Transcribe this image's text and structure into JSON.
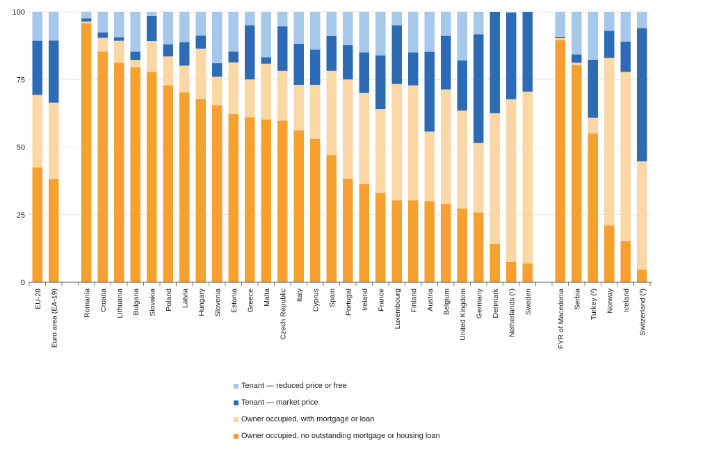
{
  "chart_data": {
    "type": "bar",
    "stacked": true,
    "title": "",
    "xlabel": "",
    "ylabel": "",
    "ylim": [
      0,
      100
    ],
    "yticks": [
      "0",
      "25",
      "50",
      "75",
      "100"
    ],
    "grid": true,
    "legend_position": "bottom",
    "groups": [
      [
        "EU-28",
        "Euro area (EA-19)"
      ],
      [
        "Romania",
        "Croatia",
        "Lithuania",
        "Bulgaria",
        "Slovakia",
        "Poland",
        "Latvia",
        "Hungary",
        "Slovenia",
        "Estonia",
        "Greece",
        "Malta",
        "Czech Republic",
        "Italy",
        "Cyprus",
        "Spain",
        "Portugal",
        "Ireland",
        "France",
        "Luxembourg",
        "Finland",
        "Austria",
        "Belgium",
        "United Kingdom",
        "Germany",
        "Denmark",
        "Netherlands (¹)",
        "Sweden"
      ],
      [
        "FYR of Macedonia",
        "Serbia",
        "Turkey (²)",
        "Norway",
        "Iceland",
        "Switzerland (³)"
      ]
    ],
    "categories": [
      "EU-28",
      "Euro area (EA-19)",
      "Romania",
      "Croatia",
      "Lithuania",
      "Bulgaria",
      "Slovakia",
      "Poland",
      "Latvia",
      "Hungary",
      "Slovenia",
      "Estonia",
      "Greece",
      "Malta",
      "Czech Republic",
      "Italy",
      "Cyprus",
      "Spain",
      "Portugal",
      "Ireland",
      "France",
      "Luxembourg",
      "Finland",
      "Austria",
      "Belgium",
      "United Kingdom",
      "Germany",
      "Denmark",
      "Netherlands (¹)",
      "Sweden",
      "FYR of Macedonia",
      "Serbia",
      "Turkey (²)",
      "Norway",
      "Iceland",
      "Switzerland (³)"
    ],
    "series": [
      {
        "name": "Owner occupied, no outstanding mortgage or housing loan",
        "color": "#f5a02f",
        "values": [
          42.5,
          38.2,
          95.8,
          85.3,
          81.2,
          79.5,
          77.8,
          72.8,
          70.2,
          67.8,
          65.5,
          62.2,
          61.0,
          60.2,
          59.8,
          56.2,
          53.0,
          47.0,
          38.3,
          36.3,
          33.0,
          30.3,
          30.3,
          30.0,
          29.0,
          27.3,
          25.8,
          14.2,
          7.5,
          7.0,
          89.5,
          80.3,
          55.0,
          21.0,
          15.2,
          4.7
        ]
      },
      {
        "name": "Owner occupied, with mortgage or loan",
        "color": "#fbd7a5",
        "values": [
          26.8,
          28.2,
          0.6,
          5.1,
          8.1,
          2.7,
          11.4,
          10.7,
          9.9,
          18.6,
          10.5,
          19.1,
          14.0,
          20.6,
          18.4,
          16.8,
          20.0,
          31.2,
          36.7,
          33.7,
          31.0,
          43.0,
          42.5,
          25.7,
          42.3,
          36.2,
          25.7,
          48.3,
          60.2,
          63.5,
          0.8,
          0.9,
          5.8,
          62.0,
          62.6,
          40.0
        ]
      },
      {
        "name": "Tenant — market price",
        "color": "#2e6bb5",
        "values": [
          20.0,
          23.0,
          1.2,
          2.0,
          1.3,
          3.0,
          9.3,
          4.5,
          8.7,
          4.8,
          5.0,
          4.0,
          20.0,
          2.4,
          16.4,
          15.2,
          13.0,
          12.8,
          12.7,
          15.0,
          19.9,
          21.7,
          12.2,
          29.5,
          19.8,
          18.5,
          40.2,
          37.5,
          32.0,
          29.5,
          0.5,
          3.0,
          21.5,
          10.0,
          11.2,
          49.3
        ]
      },
      {
        "name": "Tenant — reduced price or free",
        "color": "#a6c8ea",
        "values": [
          10.7,
          10.6,
          2.4,
          7.6,
          9.4,
          14.8,
          1.5,
          12.0,
          11.2,
          8.8,
          19.0,
          14.7,
          5.0,
          16.8,
          5.4,
          11.8,
          14.0,
          9.0,
          12.3,
          15.0,
          16.1,
          5.0,
          15.0,
          14.8,
          8.9,
          18.0,
          8.3,
          0.0,
          0.3,
          0.0,
          9.2,
          15.8,
          17.7,
          7.0,
          11.0,
          6.0
        ]
      }
    ],
    "legend": [
      {
        "label": "Tenant — reduced price or free",
        "color": "#a6c8ea"
      },
      {
        "label": "Tenant — market price",
        "color": "#2e6bb5"
      },
      {
        "label": "Owner occupied, with mortgage or loan",
        "color": "#fbd7a5"
      },
      {
        "label": "Owner occupied, no outstanding mortgage or housing loan",
        "color": "#f5a02f"
      }
    ]
  }
}
